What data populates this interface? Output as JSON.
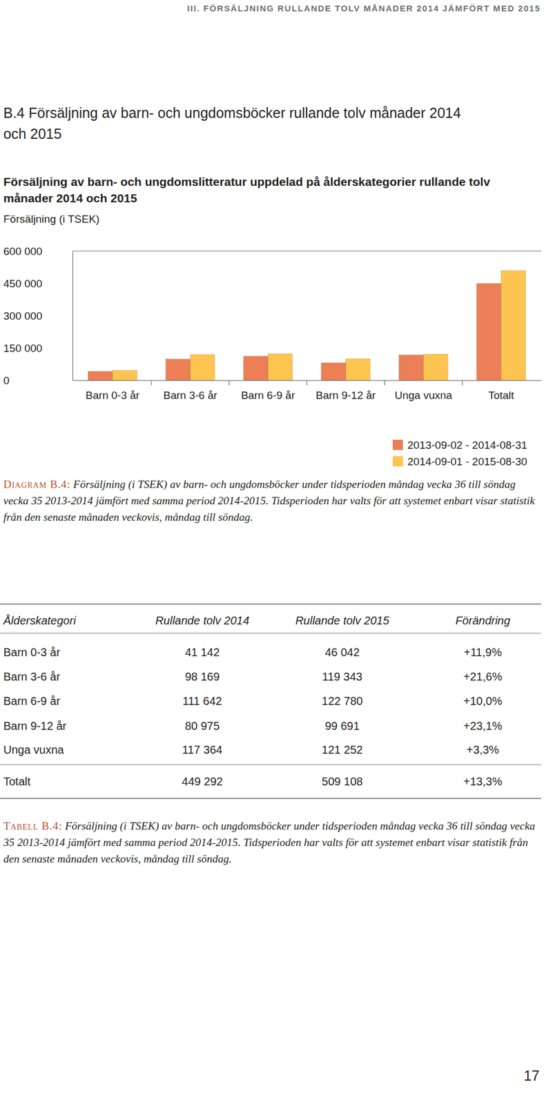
{
  "header": {
    "running_title": "III. FÖRSÄLJNING RULLANDE TOLV MÅNADER 2014 JÄMFÖRT MED 2015",
    "section_title": "B.4 Försäljning av barn- och ungdomsböcker rullande tolv månader 2014 och 2015"
  },
  "chart_data": {
    "type": "bar",
    "title": "Försäljning av barn- och ungdomslitteratur uppdelad på ålderskategorier rullande tolv månader 2014 och 2015",
    "y_label": "Försäljning (i TSEK)",
    "categories": [
      "Barn 0-3 år",
      "Barn 3-6 år",
      "Barn 6-9 år",
      "Barn 9-12 år",
      "Unga vuxna",
      "Totalt"
    ],
    "series": [
      {
        "name": "2013-09-02 - 2014-08-31",
        "color": "#ec7f55",
        "values": [
          41142,
          98169,
          111642,
          80975,
          117364,
          449292
        ]
      },
      {
        "name": "2014-09-01 - 2015-08-30",
        "color": "#fdc54f",
        "values": [
          46042,
          119343,
          122780,
          99691,
          121252,
          509108
        ]
      }
    ],
    "ylim": [
      0,
      600000
    ],
    "yticks": [
      0,
      {
        "value": 150000,
        "label": "150 000"
      },
      {
        "value": 300000,
        "label": "300 000"
      },
      {
        "value": 450000,
        "label": "450 000"
      },
      {
        "value": 600000,
        "label": "600 000"
      }
    ],
    "grid": false,
    "legend": "bottom-right"
  },
  "chart_caption": {
    "label": "Diagram B.4:",
    "text": "Försäljning (i TSEK) av barn- och ungdomsböcker under tidsperioden måndag vecka 36 till söndag vecka 35 2013-2014 jämfört med samma period 2014-2015. Tidsperioden har valts för att systemet enbart visar statistik från den senaste månaden veckovis, måndag till söndag."
  },
  "table": {
    "columns": [
      "Ålderskategori",
      "Rullande tolv 2014",
      "Rullande tolv 2015",
      "Förändring"
    ],
    "rows": [
      [
        "Barn 0-3 år",
        "41 142",
        "46 042",
        "+11,9%"
      ],
      [
        "Barn 3-6 år",
        "98 169",
        "119 343",
        "+21,6%"
      ],
      [
        "Barn 6-9 år",
        "111 642",
        "122 780",
        "+10,0%"
      ],
      [
        "Barn 9-12 år",
        "80 975",
        "99 691",
        "+23,1%"
      ],
      [
        "Unga vuxna",
        "117 364",
        "121 252",
        "+3,3%"
      ],
      [
        "Totalt",
        "449 292",
        "509 108",
        "+13,3%"
      ]
    ]
  },
  "table_caption": {
    "label": "Tabell B.4:",
    "text": "Försäljning (i TSEK) av barn- och ungdomsböcker under tidsperioden måndag vecka 36 till söndag vecka 35 2013-2014 jämfört med samma period 2014-2015. Tidsperioden har valts för att systemet enbart visar statistik från den senaste månaden veckovis, måndag till söndag."
  },
  "page_number": "17"
}
